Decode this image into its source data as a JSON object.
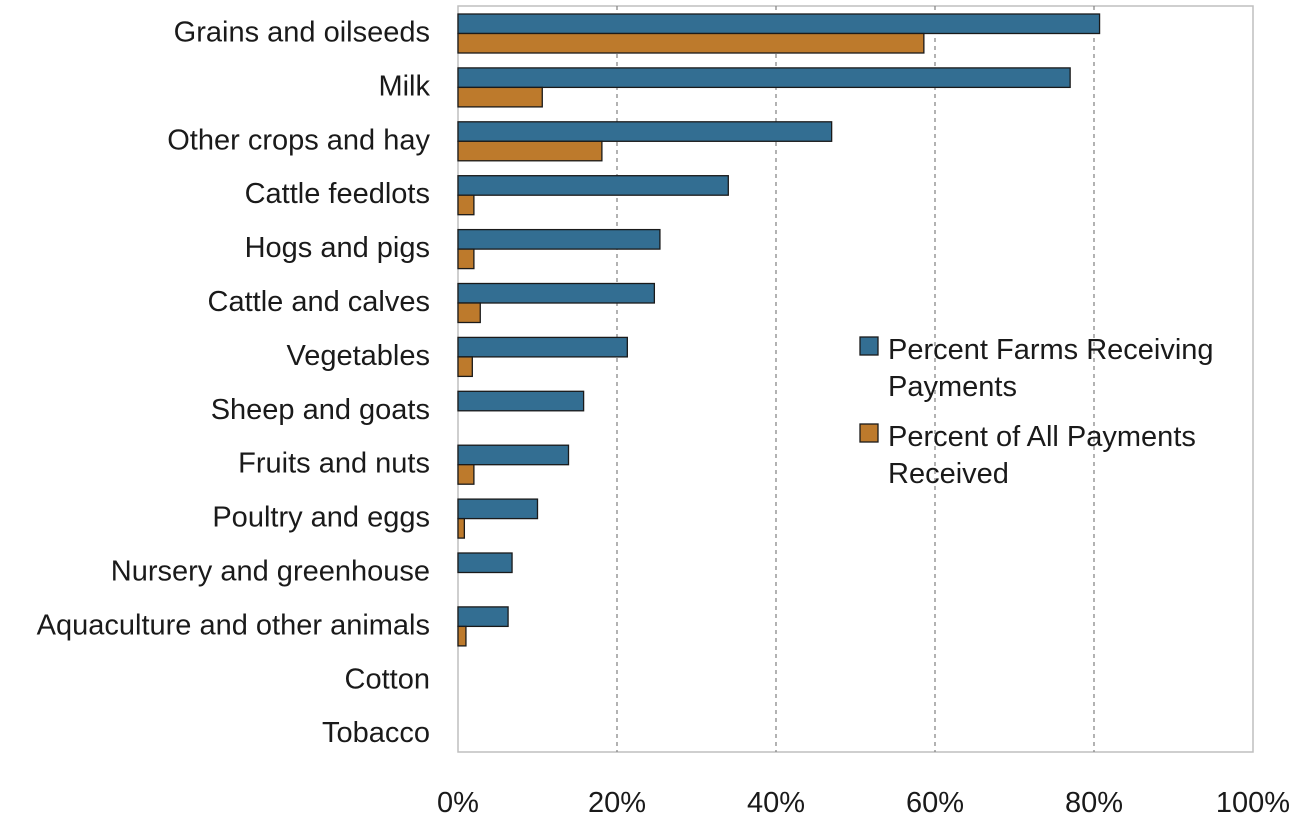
{
  "chart_data": {
    "type": "bar",
    "orientation": "horizontal",
    "title": "",
    "xlabel": "",
    "ylabel": "",
    "xlim": [
      0,
      100
    ],
    "x_ticks": [
      "0%",
      "20%",
      "40%",
      "60%",
      "80%",
      "100%"
    ],
    "grid": "vertical dashed",
    "legend_position": "right",
    "categories": [
      "Grains and oilseeds",
      "Milk",
      "Other crops and hay",
      "Cattle feedlots",
      "Hogs and pigs",
      "Cattle and calves",
      "Vegetables",
      "Sheep and goats",
      "Fruits and nuts",
      "Poultry and eggs",
      "Nursery and greenhouse",
      "Aquaculture and other animals",
      "Cotton",
      "Tobacco"
    ],
    "series": [
      {
        "name": "Percent Farms Receiving Payments",
        "legend_lines": [
          "Percent Farms Receiving",
          "Payments"
        ],
        "color": "#336e92",
        "values": [
          80.7,
          77.0,
          47.0,
          34.0,
          25.4,
          24.7,
          21.3,
          15.8,
          13.9,
          10.0,
          6.8,
          6.3,
          0,
          0
        ]
      },
      {
        "name": "Percent of All Payments Received",
        "legend_lines": [
          "Percent of All Payments",
          "Received"
        ],
        "color": "#bd7a2c",
        "values": [
          58.6,
          10.6,
          18.1,
          2.0,
          2.0,
          2.8,
          1.8,
          0,
          2.0,
          0.8,
          0,
          1.0,
          0,
          0
        ]
      }
    ]
  }
}
